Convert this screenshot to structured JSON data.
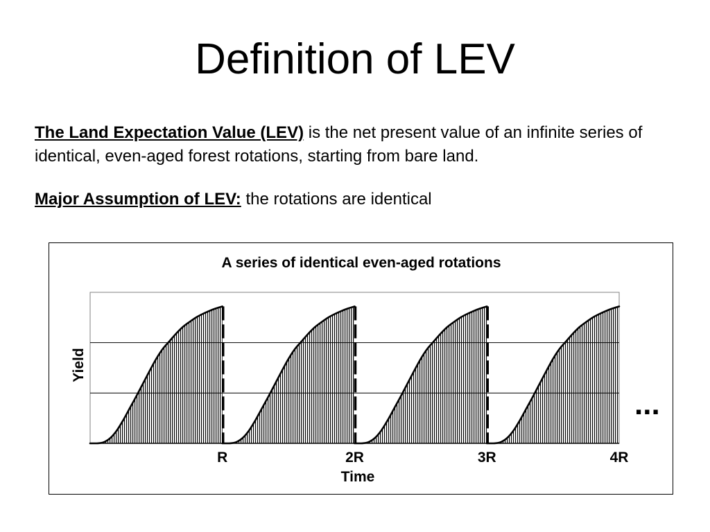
{
  "slide": {
    "title": "Definition of LEV",
    "definition": {
      "term": "The Land Expectation Value (LEV)",
      "text": " is the net present value  of an infinite series of identical, even-aged forest rotations, starting from bare land."
    },
    "assumption": {
      "term": "Major Assumption of LEV:",
      "text": " the rotations are identical"
    }
  },
  "chart_data": {
    "type": "area",
    "title": "A series of identical even-aged rotations",
    "xlabel": "Time",
    "ylabel": "Yield",
    "xlim": [
      0,
      4
    ],
    "ylim": [
      0,
      3
    ],
    "grid": true,
    "y_grid_step": 1,
    "x_ticks": [
      {
        "value": 1,
        "label": "R"
      },
      {
        "value": 2,
        "label": "2R"
      },
      {
        "value": 3,
        "label": "3R"
      },
      {
        "value": 4,
        "label": "4R"
      }
    ],
    "rotations": 4,
    "rotation_length": 1,
    "yield_curve_per_rotation": {
      "age": [
        0,
        0.05,
        0.1,
        0.15,
        0.2,
        0.25,
        0.3,
        0.35,
        0.4,
        0.45,
        0.5,
        0.55,
        0.6,
        0.65,
        0.7,
        0.75,
        0.8,
        0.85,
        0.9,
        0.95,
        1.0
      ],
      "yield": [
        0,
        0,
        0.02,
        0.1,
        0.25,
        0.46,
        0.7,
        0.94,
        1.19,
        1.44,
        1.68,
        1.88,
        2.03,
        2.18,
        2.31,
        2.41,
        2.5,
        2.57,
        2.63,
        2.68,
        2.72
      ]
    },
    "harvest_lines_at": [
      1,
      2,
      3
    ],
    "annotation": "...",
    "colors": {
      "line": "#000000",
      "grid": "#000000",
      "plot_border": "#808080",
      "hatch": "#000000"
    }
  }
}
